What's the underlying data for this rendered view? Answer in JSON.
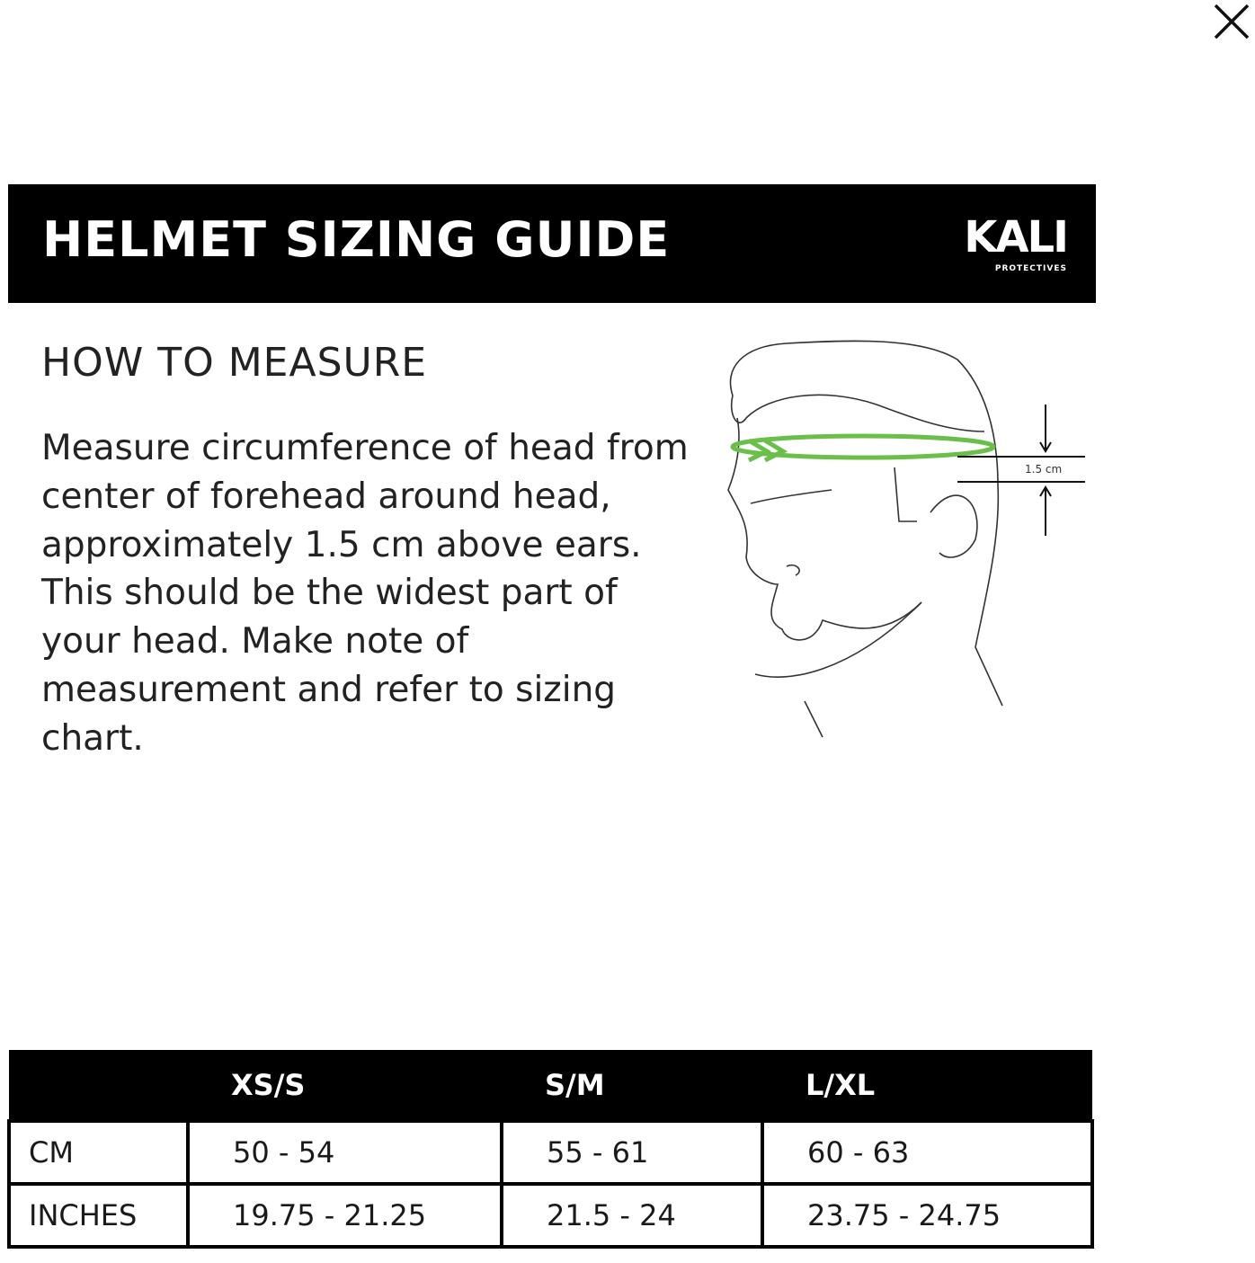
{
  "close_icon": "close-icon",
  "banner": {
    "title": "HELMET SIZING GUIDE",
    "logo_text": "KALI",
    "logo_subtext": "PROTECTIVES"
  },
  "measure": {
    "heading": "HOW TO MEASURE",
    "instructions": "Measure circumference of head from center of forehead around head, approximately 1.5 cm above ears. This should be the widest part of your head. Make note of measurement and refer to sizing chart.",
    "diagram_label": "1.5 cm",
    "accent_color": "#6abf4b"
  },
  "size_table": {
    "headers": [
      "",
      "XS/S",
      "S/M",
      "L/XL"
    ],
    "rows": [
      {
        "label": "CM",
        "values": [
          "50 - 54",
          "55 - 61",
          "60 - 63"
        ]
      },
      {
        "label": "INCHES",
        "values": [
          "19.75 - 21.25",
          "21.5 - 24",
          "23.75 - 24.75"
        ]
      }
    ]
  }
}
